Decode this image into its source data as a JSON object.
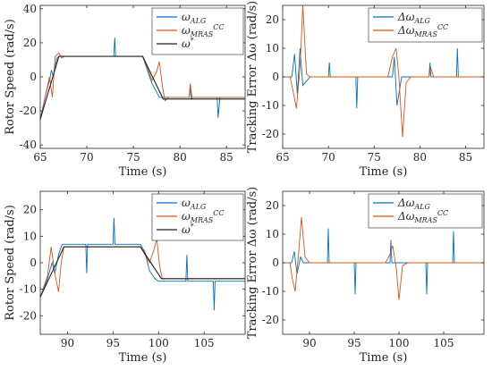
{
  "colors": {
    "blue": "#0072BD",
    "orange": "#D95319",
    "black": "#222222"
  },
  "chart_data": [
    {
      "type": "line",
      "xlabel": "Time (s)",
      "ylabel": "Rotor Speed (rad/s)",
      "xlim": [
        65,
        87
      ],
      "ylim": [
        -42,
        42
      ],
      "xticks": [
        65,
        70,
        75,
        80,
        85
      ],
      "yticks": [
        -40,
        -20,
        0,
        20,
        40
      ],
      "xtick_labels": [
        "65",
        "70",
        "75",
        "80",
        "85"
      ],
      "ytick_labels": [
        "-40",
        "-20",
        "0",
        "20",
        "40"
      ],
      "legend_position": "top-right",
      "series": [
        {
          "name": "ω_ALG",
          "label_main": "ω",
          "label_sub": "ALG",
          "label_sup": "",
          "color": "#0072BD",
          "x": [
            65,
            65.6,
            66.0,
            66.2,
            66.4,
            66.6,
            66.8,
            67.0,
            67.5,
            68,
            70,
            72.9,
            73.0,
            73.1,
            73.3,
            74,
            76,
            77.0,
            77.4,
            77.8,
            78,
            80,
            81.0,
            81.1,
            81.2,
            81.4,
            83,
            84.0,
            84.1,
            84.3,
            86,
            87
          ],
          "y": [
            -25,
            -10,
            -2,
            4,
            0,
            7,
            11,
            12,
            12,
            12,
            12,
            12,
            23,
            12,
            12,
            12,
            12,
            -4,
            -8,
            -12,
            -12,
            -12,
            -12,
            -6,
            -13,
            -12,
            -12,
            -12,
            -24,
            -12,
            -12,
            -12
          ]
        },
        {
          "name": "ω_MRAS^CC",
          "label_main": "ω",
          "label_sub": "MRAS",
          "label_sup": "CC",
          "color": "#D95319",
          "x": [
            65,
            65.6,
            66.0,
            66.3,
            66.6,
            67.0,
            67.3,
            67.6,
            68,
            70,
            73,
            76,
            77.0,
            77.5,
            77.8,
            78.1,
            78.4,
            78.8,
            79,
            80,
            81.0,
            81.1,
            81.3,
            84,
            87
          ],
          "y": [
            -25,
            -10,
            0,
            -12,
            12,
            14,
            11,
            12,
            12,
            12,
            12,
            12,
            -2,
            3,
            9,
            -5,
            -14,
            -12,
            -12,
            -12,
            -12,
            -4,
            -12,
            -12,
            -12
          ]
        },
        {
          "name": "ω*",
          "label_main": "ω",
          "label_sub": "",
          "label_sup": "*",
          "color": "#222222",
          "x": [
            65,
            67,
            76,
            78.2,
            87
          ],
          "y": [
            -25,
            12,
            12,
            -13,
            -13
          ]
        }
      ]
    },
    {
      "type": "line",
      "xlabel": "Time (s)",
      "ylabel": "Tracking Error Δω (rad/s)",
      "xlim": [
        65,
        87
      ],
      "ylim": [
        -25,
        25
      ],
      "xticks": [
        65,
        70,
        75,
        80,
        85
      ],
      "yticks": [
        -20,
        -10,
        0,
        10,
        20
      ],
      "xtick_labels": [
        "65",
        "70",
        "75",
        "80",
        "85"
      ],
      "ytick_labels": [
        "-20",
        "-10",
        "0",
        "10",
        "20"
      ],
      "legend_position": "top-right",
      "series": [
        {
          "name": "Δω_ALG",
          "label_main": "Δω",
          "label_sub": "ALG",
          "label_sup": "",
          "color": "#0072BD",
          "x": [
            65,
            66.0,
            66.3,
            66.6,
            66.9,
            67.2,
            68,
            70.0,
            70.1,
            70.2,
            73.0,
            73.1,
            73.2,
            77.0,
            77.2,
            77.5,
            78,
            81.0,
            81.1,
            81.2,
            84.0,
            84.1,
            84.2,
            87
          ],
          "y": [
            0,
            0,
            8,
            -6,
            10,
            -3,
            0,
            0,
            5,
            0,
            0,
            -11,
            0,
            0,
            7,
            -10,
            0,
            0,
            5,
            0,
            0,
            10,
            0,
            0
          ]
        },
        {
          "name": "Δω_MRAS^CC",
          "label_main": "Δω",
          "label_sub": "MRAS",
          "label_sup": "CC",
          "color": "#D95319",
          "x": [
            65,
            65.8,
            66.2,
            66.5,
            66.9,
            67.2,
            67.6,
            68,
            70,
            73,
            76.5,
            77.0,
            77.4,
            77.7,
            78.1,
            78.5,
            79,
            81.0,
            81.2,
            81.5,
            87
          ],
          "y": [
            0,
            0,
            -6,
            -11,
            3,
            25,
            1,
            0,
            0,
            0,
            0,
            7,
            10,
            0,
            -21,
            -2,
            0,
            0,
            3,
            0,
            0
          ]
        }
      ]
    },
    {
      "type": "line",
      "xlabel": "Time (s)",
      "ylabel": "Rotor Speed (rad/s)",
      "xlim": [
        87,
        109.5
      ],
      "ylim": [
        -27,
        27
      ],
      "xticks": [
        90,
        95,
        100,
        105
      ],
      "yticks": [
        -20,
        -10,
        0,
        10,
        20
      ],
      "xtick_labels": [
        "90",
        "95",
        "100",
        "105"
      ],
      "ytick_labels": [
        "-20",
        "-10",
        "0",
        "10",
        "20"
      ],
      "legend_position": "top-right",
      "series": [
        {
          "name": "ω_ALG",
          "label_main": "ω",
          "label_sub": "ALG",
          "label_sup": "",
          "color": "#0072BD",
          "x": [
            87,
            87.8,
            88.3,
            88.6,
            89.0,
            89.4,
            89.8,
            92.0,
            92.1,
            92.2,
            95.0,
            95.1,
            95.2,
            98,
            98.5,
            99.0,
            99.6,
            100,
            103,
            103.1,
            103.2,
            106.0,
            106.1,
            106.2,
            109.5
          ],
          "y": [
            -13,
            -6,
            0,
            -4,
            3,
            7,
            7,
            7,
            -4,
            7,
            7,
            17,
            7,
            7,
            4,
            -3,
            -6,
            -7,
            -7,
            3,
            -7,
            -7,
            -18,
            -7,
            -7
          ]
        },
        {
          "name": "ω_MRAS^CC",
          "label_main": "ω",
          "label_sub": "MRAS",
          "label_sup": "CC",
          "color": "#D95319",
          "x": [
            87,
            87.8,
            88.2,
            88.6,
            89.0,
            89.3,
            89.6,
            90,
            95,
            98,
            99.0,
            99.5,
            99.8,
            100.1,
            100.4,
            101,
            109.5
          ],
          "y": [
            -13,
            -5,
            6,
            -4,
            -11,
            0,
            6,
            6,
            6,
            6,
            0,
            5,
            9,
            -1,
            -6,
            -6,
            -6
          ]
        },
        {
          "name": "ω*",
          "label_main": "ω",
          "label_sub": "",
          "label_sup": "*",
          "color": "#222222",
          "x": [
            87,
            89.6,
            98,
            100.3,
            109.5
          ],
          "y": [
            -13,
            6,
            6,
            -6,
            -6
          ]
        }
      ]
    },
    {
      "type": "line",
      "xlabel": "Time (s)",
      "ylabel": "Tracking Error Δω (rad/s)",
      "xlim": [
        87,
        109.5
      ],
      "ylim": [
        -25,
        25
      ],
      "xticks": [
        90,
        95,
        100,
        105
      ],
      "yticks": [
        -20,
        -10,
        0,
        10,
        20
      ],
      "xtick_labels": [
        "90",
        "95",
        "100",
        "105"
      ],
      "ytick_labels": [
        "-20",
        "-10",
        "0",
        "10",
        "20"
      ],
      "legend_position": "top-right",
      "series": [
        {
          "name": "Δω_ALG",
          "label_main": "Δω",
          "label_sub": "ALG",
          "label_sup": "",
          "color": "#0072BD",
          "x": [
            87,
            88.0,
            88.3,
            88.6,
            89.0,
            89.3,
            90,
            92.0,
            92.1,
            92.2,
            95.0,
            95.1,
            95.2,
            99.0,
            99.1,
            99.2,
            103.0,
            103.1,
            103.2,
            106.0,
            106.1,
            106.2,
            109.5
          ],
          "y": [
            0,
            0,
            4,
            -4,
            2,
            0,
            0,
            0,
            12,
            0,
            0,
            -11,
            0,
            0,
            8,
            0,
            0,
            -11,
            0,
            0,
            11,
            0,
            0
          ]
        },
        {
          "name": "Δω_MRAS^CC",
          "label_main": "Δω",
          "label_sub": "MRAS",
          "label_sup": "CC",
          "color": "#D95319",
          "x": [
            87,
            87.8,
            88.1,
            88.4,
            88.8,
            89.1,
            89.5,
            90,
            98.5,
            99.0,
            99.3,
            99.7,
            100.0,
            100.4,
            101,
            109.5
          ],
          "y": [
            0,
            0,
            -6,
            -10,
            4,
            16,
            2,
            0,
            0,
            3,
            6,
            -2,
            -13,
            -1,
            0,
            0
          ]
        }
      ]
    }
  ]
}
